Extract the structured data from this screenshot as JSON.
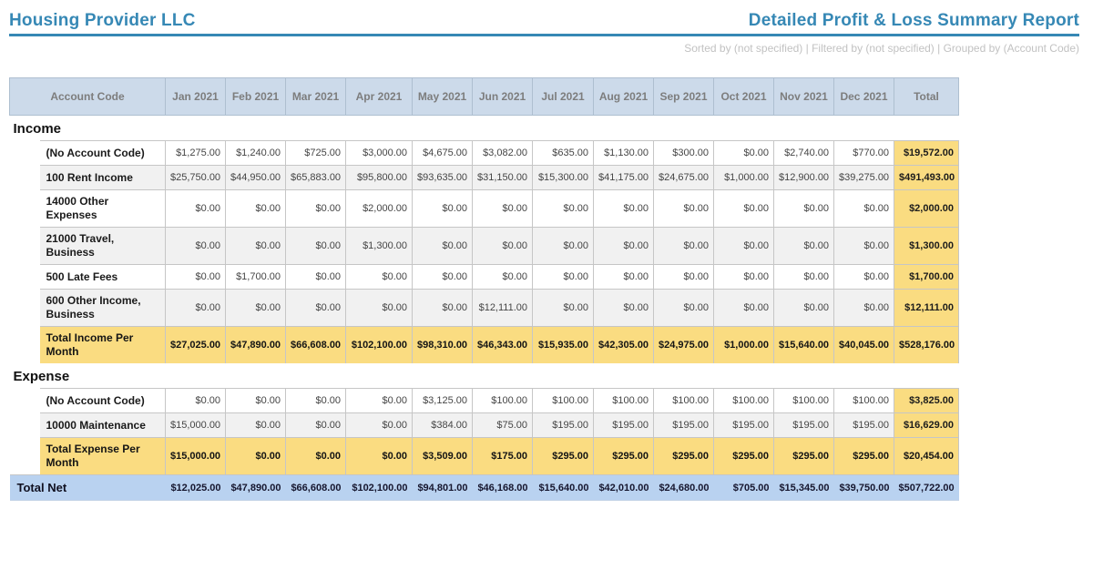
{
  "header": {
    "company": "Housing Provider LLC",
    "report_title": "Detailed Profit & Loss Summary Report",
    "subtitle": "Sorted by (not specified) | Filtered by (not specified) | Grouped by (Account Code)"
  },
  "colors": {
    "accent_blue": "#3688b5",
    "table_header_bg": "#ccdaea",
    "total_highlight": "#fadc81",
    "net_row_bg": "#b9d2f0",
    "alt_row_bg": "#f1f1f1",
    "subtitle_gray": "#c2c2c2"
  },
  "table": {
    "columns": [
      "Account Code",
      "Jan 2021",
      "Feb 2021",
      "Mar 2021",
      "Apr 2021",
      "May 2021",
      "Jun 2021",
      "Jul 2021",
      "Aug 2021",
      "Sep 2021",
      "Oct 2021",
      "Nov 2021",
      "Dec 2021",
      "Total"
    ],
    "sections": [
      {
        "label": "Income",
        "rows": [
          {
            "label": "(No Account Code)",
            "values": [
              "$1,275.00",
              "$1,240.00",
              "$725.00",
              "$3,000.00",
              "$4,675.00",
              "$3,082.00",
              "$635.00",
              "$1,130.00",
              "$300.00",
              "$0.00",
              "$2,740.00",
              "$770.00"
            ],
            "total": "$19,572.00"
          },
          {
            "label": "100 Rent Income",
            "values": [
              "$25,750.00",
              "$44,950.00",
              "$65,883.00",
              "$95,800.00",
              "$93,635.00",
              "$31,150.00",
              "$15,300.00",
              "$41,175.00",
              "$24,675.00",
              "$1,000.00",
              "$12,900.00",
              "$39,275.00"
            ],
            "total": "$491,493.00"
          },
          {
            "label": "14000 Other Expenses",
            "values": [
              "$0.00",
              "$0.00",
              "$0.00",
              "$2,000.00",
              "$0.00",
              "$0.00",
              "$0.00",
              "$0.00",
              "$0.00",
              "$0.00",
              "$0.00",
              "$0.00"
            ],
            "total": "$2,000.00"
          },
          {
            "label": "21000 Travel, Business",
            "values": [
              "$0.00",
              "$0.00",
              "$0.00",
              "$1,300.00",
              "$0.00",
              "$0.00",
              "$0.00",
              "$0.00",
              "$0.00",
              "$0.00",
              "$0.00",
              "$0.00"
            ],
            "total": "$1,300.00"
          },
          {
            "label": "500 Late Fees",
            "values": [
              "$0.00",
              "$1,700.00",
              "$0.00",
              "$0.00",
              "$0.00",
              "$0.00",
              "$0.00",
              "$0.00",
              "$0.00",
              "$0.00",
              "$0.00",
              "$0.00"
            ],
            "total": "$1,700.00"
          },
          {
            "label": "600 Other Income, Business",
            "values": [
              "$0.00",
              "$0.00",
              "$0.00",
              "$0.00",
              "$0.00",
              "$12,111.00",
              "$0.00",
              "$0.00",
              "$0.00",
              "$0.00",
              "$0.00",
              "$0.00"
            ],
            "total": "$12,111.00"
          }
        ],
        "total_row": {
          "label": "Total Income Per Month",
          "values": [
            "$27,025.00",
            "$47,890.00",
            "$66,608.00",
            "$102,100.00",
            "$98,310.00",
            "$46,343.00",
            "$15,935.00",
            "$42,305.00",
            "$24,975.00",
            "$1,000.00",
            "$15,640.00",
            "$40,045.00"
          ],
          "total": "$528,176.00"
        }
      },
      {
        "label": "Expense",
        "rows": [
          {
            "label": "(No Account Code)",
            "values": [
              "$0.00",
              "$0.00",
              "$0.00",
              "$0.00",
              "$3,125.00",
              "$100.00",
              "$100.00",
              "$100.00",
              "$100.00",
              "$100.00",
              "$100.00",
              "$100.00"
            ],
            "total": "$3,825.00"
          },
          {
            "label": "10000 Maintenance",
            "values": [
              "$15,000.00",
              "$0.00",
              "$0.00",
              "$0.00",
              "$384.00",
              "$75.00",
              "$195.00",
              "$195.00",
              "$195.00",
              "$195.00",
              "$195.00",
              "$195.00"
            ],
            "total": "$16,629.00"
          }
        ],
        "total_row": {
          "label": "Total Expense Per Month",
          "values": [
            "$15,000.00",
            "$0.00",
            "$0.00",
            "$0.00",
            "$3,509.00",
            "$175.00",
            "$295.00",
            "$295.00",
            "$295.00",
            "$295.00",
            "$295.00",
            "$295.00"
          ],
          "total": "$20,454.00"
        }
      }
    ],
    "net_row": {
      "label": "Total Net",
      "values": [
        "$12,025.00",
        "$47,890.00",
        "$66,608.00",
        "$102,100.00",
        "$94,801.00",
        "$46,168.00",
        "$15,640.00",
        "$42,010.00",
        "$24,680.00",
        "$705.00",
        "$15,345.00",
        "$39,750.00"
      ],
      "total": "$507,722.00"
    }
  }
}
